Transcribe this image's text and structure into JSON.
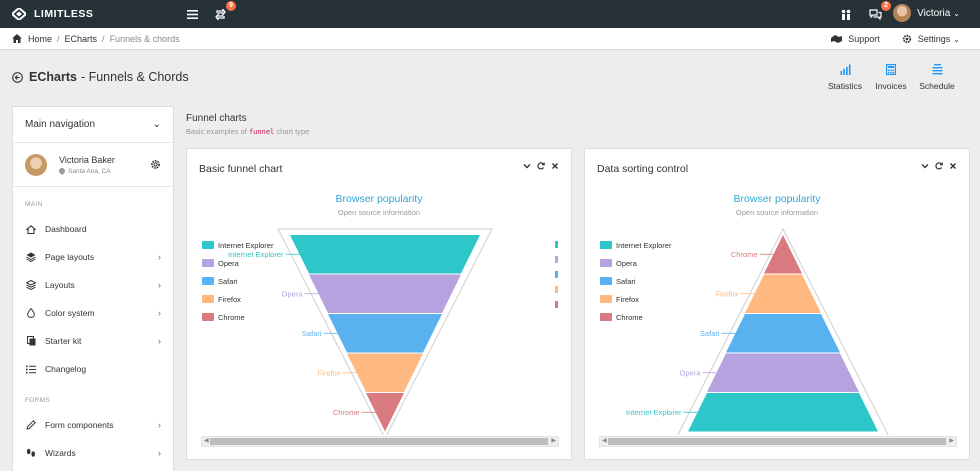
{
  "navbar": {
    "brand": "LIMITLESS",
    "updates_badge": "9",
    "messages_badge": "2",
    "user_name": "Victoria"
  },
  "breadcrumb": {
    "items": [
      "Home",
      "ECharts",
      "Funnels & chords"
    ],
    "support_label": "Support",
    "settings_label": "Settings"
  },
  "page_header": {
    "title_bold": "ECharts",
    "title_rest": "- Funnels & Chords",
    "actions": [
      "Statistics",
      "Invoices",
      "Schedule"
    ]
  },
  "sidebar": {
    "title": "Main navigation",
    "user_name": "Victoria Baker",
    "user_location": "Santa Ana, CA",
    "section_main": "MAIN",
    "main_items": [
      {
        "label": "Dashboard",
        "icon": "home-icon",
        "has_submenu": false
      },
      {
        "label": "Page layouts",
        "icon": "layers-icon",
        "has_submenu": true
      },
      {
        "label": "Layouts",
        "icon": "stack-icon",
        "has_submenu": true
      },
      {
        "label": "Color system",
        "icon": "droplet-icon",
        "has_submenu": true
      },
      {
        "label": "Starter kit",
        "icon": "copy-icon",
        "has_submenu": true
      },
      {
        "label": "Changelog",
        "icon": "list-icon",
        "has_submenu": false
      }
    ],
    "section_forms": "FORMS",
    "forms_items": [
      {
        "label": "Form components",
        "icon": "pencil-icon",
        "has_submenu": true
      },
      {
        "label": "Wizards",
        "icon": "footprints-icon",
        "has_submenu": true
      }
    ]
  },
  "section": {
    "title": "Funnel charts",
    "desc_before": "Basic examples of",
    "desc_code": "funnel",
    "desc_after": "chart type"
  },
  "colors": {
    "navbar_bg": "#263238",
    "badge": "#ff7043",
    "accent": "#2196f3",
    "chart_title": "#2ea8d8"
  },
  "cards": [
    {
      "title": "Basic funnel chart"
    },
    {
      "title": "Data sorting control"
    }
  ],
  "chart_data": [
    {
      "type": "funnel",
      "title": "Browser popularity",
      "subtitle": "Open source information",
      "sort": "descending",
      "legend_position": "left",
      "series": [
        {
          "name": "Internet Explorer",
          "value": 100,
          "color": "#2ec7c9"
        },
        {
          "name": "Opera",
          "value": 80,
          "color": "#b6a2de"
        },
        {
          "name": "Safari",
          "value": 60,
          "color": "#5ab1ef"
        },
        {
          "name": "Firefox",
          "value": 40,
          "color": "#ffb980"
        },
        {
          "name": "Chrome",
          "value": 20,
          "color": "#d87a80"
        }
      ]
    },
    {
      "type": "funnel",
      "title": "Browser popularity",
      "subtitle": "Open source information",
      "sort": "ascending",
      "legend_position": "left",
      "series": [
        {
          "name": "Internet Explorer",
          "value": 100,
          "color": "#2ec7c9"
        },
        {
          "name": "Opera",
          "value": 80,
          "color": "#b6a2de"
        },
        {
          "name": "Safari",
          "value": 60,
          "color": "#5ab1ef"
        },
        {
          "name": "Firefox",
          "value": 40,
          "color": "#ffb980"
        },
        {
          "name": "Chrome",
          "value": 20,
          "color": "#d87a80"
        }
      ]
    }
  ]
}
